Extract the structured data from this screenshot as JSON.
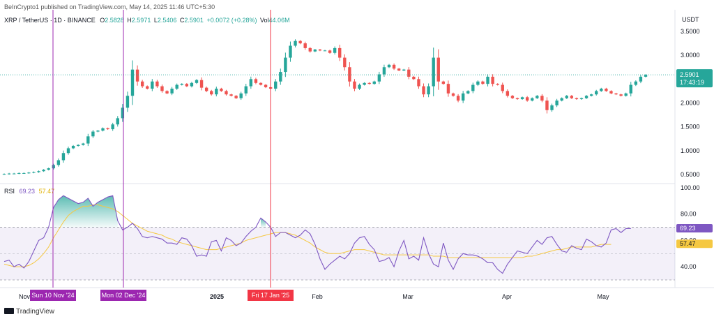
{
  "header": {
    "publisher": "BeInCrypto1 published on TradingView.com, May 14, 2025 11:46 UTC+5:30",
    "currency": "USDT"
  },
  "legend": {
    "symbol": "XRP / TetherUS · 1D · BINANCE",
    "o_label": "O",
    "o": "2.5828",
    "h_label": "H",
    "h": "2.5971",
    "l_label": "L",
    "l": "2.5406",
    "c_label": "C",
    "c": "2.5901",
    "change": "+0.0072 (+0.28%)",
    "vol_label": "Vol",
    "vol": "44.06M"
  },
  "rsi_legend": {
    "label": "RSI",
    "value": "69.23",
    "ma": "57.47"
  },
  "footer": {
    "brand": "TradingView"
  },
  "colors": {
    "up": "#26a69a",
    "down": "#ef5350",
    "rsi": "#7e57c2",
    "rsi_ma": "#f5c842",
    "purple_marker": "#9c27b0",
    "red_marker": "#f23645"
  },
  "chart_data": [
    {
      "type": "candlestick",
      "title": "XRP / TetherUS · 1D · BINANCE",
      "y_unit": "USDT",
      "ylim": [
        0.3,
        3.7
      ],
      "y_ticks": [
        "0.5000",
        "1.0000",
        "1.5000",
        "2.0000",
        "2.5000",
        "3.0000",
        "3.5000"
      ],
      "x_ticks": [
        "Nov",
        "2025",
        "Feb",
        "Mar",
        "Apr",
        "May"
      ],
      "last_price": "2.5901",
      "countdown": "17:43:19",
      "series": [
        {
          "values": [
            0.51,
            0.52,
            0.52,
            0.53,
            0.53,
            0.54,
            0.55,
            0.57,
            0.6,
            0.63,
            0.7,
            0.8,
            0.95,
            1.05,
            1.1,
            1.12,
            1.15,
            1.3,
            1.4,
            1.42,
            1.47,
            1.45,
            1.55,
            1.68,
            1.9,
            2.15,
            2.7,
            2.45,
            2.35,
            2.3,
            2.45,
            2.35,
            2.25,
            2.2,
            2.3,
            2.38,
            2.4,
            2.35,
            2.42,
            2.48,
            2.32,
            2.25,
            2.18,
            2.3,
            2.25,
            2.18,
            2.15,
            2.1,
            2.2,
            2.35,
            2.5,
            2.42,
            2.38,
            2.33,
            2.3,
            2.45,
            2.65,
            2.95,
            3.2,
            3.3,
            3.25,
            3.15,
            3.08,
            3.12,
            3.1,
            3.1,
            3.05,
            3.15,
            2.95,
            2.75,
            2.45,
            2.3,
            2.38,
            2.42,
            2.4,
            2.45,
            2.6,
            2.75,
            2.8,
            2.72,
            2.68,
            2.7,
            2.55,
            2.5,
            2.35,
            2.18,
            2.35,
            2.95,
            2.45,
            2.4,
            2.2,
            2.15,
            2.05,
            2.2,
            2.25,
            2.38,
            2.45,
            2.4,
            2.55,
            2.4,
            2.38,
            2.25,
            2.15,
            2.1,
            2.08,
            2.12,
            2.05,
            2.1,
            2.15,
            2.05,
            1.85,
            1.95,
            2.05,
            2.1,
            2.15,
            2.1,
            2.08,
            2.1,
            2.15,
            2.18,
            2.25,
            2.3,
            2.25,
            2.2,
            2.18,
            2.15,
            2.2,
            2.38,
            2.45,
            2.55,
            2.59
          ]
        }
      ]
    },
    {
      "type": "line",
      "title": "RSI",
      "ylim": [
        25,
        100
      ],
      "y_ticks": [
        "40.00",
        "60.00",
        "80.00",
        "100.00"
      ],
      "band": [
        30,
        70
      ],
      "series": [
        {
          "name": "RSI",
          "values": [
            44,
            45,
            40,
            42,
            39,
            44,
            52,
            60,
            62,
            70,
            85,
            91,
            94,
            92,
            90,
            88,
            89,
            92,
            86,
            89,
            91,
            93,
            94,
            75,
            68,
            70,
            73,
            69,
            63,
            62,
            63,
            62,
            61,
            58,
            58,
            57,
            62,
            61,
            56,
            48,
            49,
            48,
            59,
            60,
            52,
            62,
            60,
            56,
            58,
            63,
            67,
            70,
            77,
            74,
            70,
            63,
            66,
            66,
            64,
            62,
            64,
            68,
            65,
            57,
            46,
            38,
            42,
            45,
            48,
            46,
            50,
            58,
            62,
            63,
            57,
            53,
            44,
            45,
            47,
            40,
            52,
            60,
            46,
            48,
            45,
            62,
            50,
            42,
            40,
            58,
            45,
            38,
            46,
            50,
            49,
            49,
            48,
            46,
            43,
            43,
            38,
            35,
            42,
            47,
            52,
            51,
            50,
            55,
            60,
            57,
            62,
            63,
            57,
            52,
            51,
            56,
            54,
            53,
            61,
            59,
            56,
            55,
            58,
            68,
            69,
            66,
            69,
            69
          ]
        },
        {
          "name": "MA",
          "values": [
            42,
            41,
            40,
            40,
            40,
            41,
            43,
            46,
            50,
            55,
            62,
            68,
            74,
            79,
            82,
            84,
            86,
            86,
            87,
            87,
            86,
            85,
            84,
            82,
            79,
            76,
            73,
            71,
            69,
            67,
            66,
            65,
            64,
            62,
            61,
            59,
            58,
            57,
            56,
            55,
            54,
            53,
            53,
            53,
            54,
            55,
            56,
            57,
            58,
            60,
            61,
            62,
            63,
            64,
            65,
            66,
            66,
            66,
            65,
            64,
            62,
            60,
            58,
            55,
            53,
            51,
            50,
            50,
            50,
            51,
            52,
            53,
            53,
            53,
            52,
            51,
            50,
            49,
            49,
            49,
            49,
            49,
            49,
            49,
            49,
            49,
            49,
            48,
            48,
            48,
            47,
            47,
            47,
            47,
            47,
            47,
            47,
            47,
            47,
            47,
            47,
            47,
            47,
            47,
            47,
            47,
            48,
            48,
            49,
            50,
            51,
            52,
            53,
            53,
            54,
            55,
            55,
            55,
            55,
            55,
            56,
            57,
            57,
            57
          ]
        }
      ],
      "last_value": "69.23",
      "last_ma": "57.47"
    }
  ],
  "markers": [
    {
      "label": "Sun 10 Nov '24",
      "color": "purple"
    },
    {
      "label": "Mon 02 Dec '24",
      "color": "purple"
    },
    {
      "label": "Fri 17 Jan '25",
      "color": "red"
    }
  ]
}
